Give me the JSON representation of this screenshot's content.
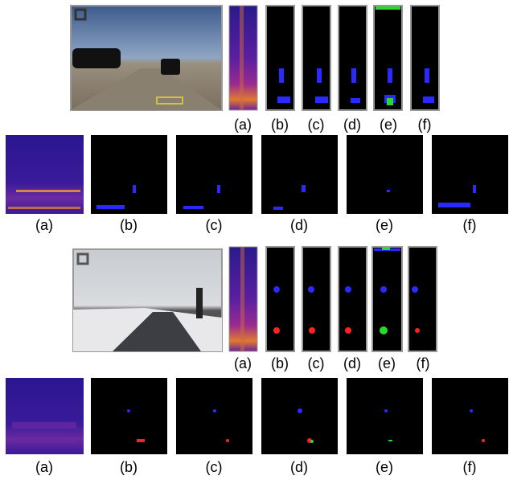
{
  "figure": {
    "rows": [
      {
        "labels": [
          "(a)",
          "(b)",
          "(c)",
          "(d)",
          "(e)",
          "(f)"
        ]
      },
      {
        "labels": [
          "(a)",
          "(b)",
          "(c)",
          "(d)",
          "(e)",
          "(f)"
        ]
      },
      {
        "labels": [
          "(a)",
          "(b)",
          "(c)",
          "(d)",
          "(e)",
          "(f)"
        ]
      },
      {
        "labels": [
          "(a)",
          "(b)",
          "(c)",
          "(d)",
          "(e)",
          "(f)"
        ]
      }
    ]
  }
}
